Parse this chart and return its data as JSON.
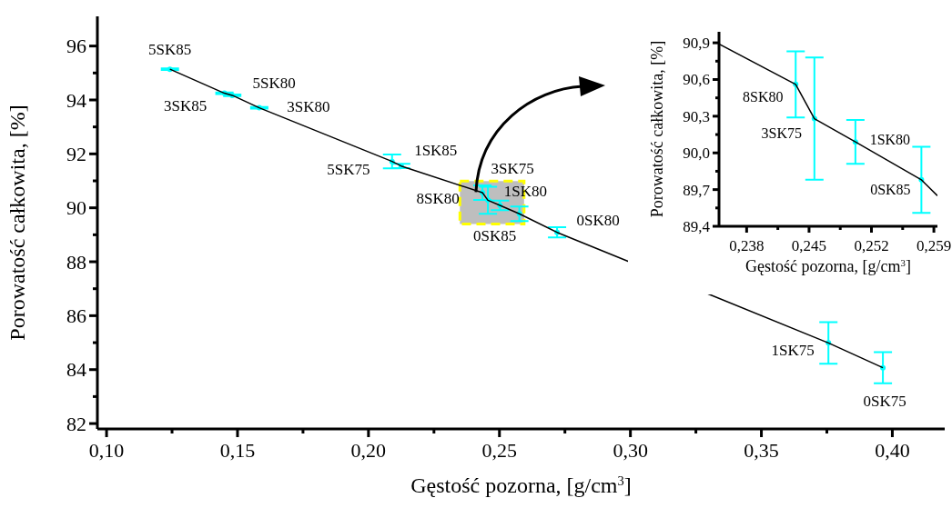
{
  "chart_data": [
    {
      "type": "scatter",
      "xlabel": "Gęstość pozorna, [g/cm$^{3}$]",
      "ylabel": "Porowatość całkowita, [%]",
      "xlim": [
        0.0965,
        0.42
      ],
      "ylim": [
        81.8,
        97.1
      ],
      "xticks": [
        {
          "value": 0.1,
          "label": "0,10"
        },
        {
          "value": 0.125,
          "label": null
        },
        {
          "value": 0.15,
          "label": "0,15"
        },
        {
          "value": 0.175,
          "label": null
        },
        {
          "value": 0.2,
          "label": "0,20"
        },
        {
          "value": 0.225,
          "label": null
        },
        {
          "value": 0.25,
          "label": "0,25"
        },
        {
          "value": 0.275,
          "label": null
        },
        {
          "value": 0.3,
          "label": "0,30"
        },
        {
          "value": 0.325,
          "label": null
        },
        {
          "value": 0.35,
          "label": "0,35"
        },
        {
          "value": 0.375,
          "label": null
        },
        {
          "value": 0.4,
          "label": "0,40"
        }
      ],
      "yticks": [
        82,
        {
          "value": 83,
          "label": null
        },
        84,
        {
          "value": 85,
          "label": null
        },
        86,
        {
          "value": 87,
          "label": null
        },
        88,
        {
          "value": 89,
          "label": null
        },
        90,
        {
          "value": 91,
          "label": null
        },
        92,
        {
          "value": 93,
          "label": null
        },
        94,
        {
          "value": 95,
          "label": null
        },
        96
      ],
      "grid": false,
      "series": [
        {
          "type": "scatter",
          "marker": "circle",
          "color": "#00ffff",
          "x": [
            0.1242,
            0.145,
            0.148,
            0.1583,
            0.209,
            0.2125,
            0.2435,
            0.2456,
            0.2502,
            0.2576,
            0.272,
            0.3756,
            0.3964
          ],
          "values": [
            95.14,
            94.25,
            94.17,
            93.71,
            91.72,
            91.55,
            90.56,
            90.28,
            90.09,
            89.78,
            89.09,
            84.99,
            84.07
          ],
          "errors": [
            0.03,
            0.03,
            0.03,
            0.03,
            0.26,
            0.08,
            0.27,
            0.5,
            0.18,
            0.27,
            0.19,
            0.77,
            0.58
          ]
        },
        {
          "type": "line",
          "marker": "none",
          "color": "#000000",
          "x": [
            0.1242,
            0.145,
            0.148,
            0.1583,
            0.209,
            0.2125,
            0.2435,
            0.2456,
            0.2502,
            0.2576,
            0.272,
            0.3756,
            0.3964
          ],
          "values": [
            95.14,
            94.25,
            94.17,
            93.71,
            91.72,
            91.55,
            90.56,
            90.28,
            90.09,
            89.78,
            89.09,
            84.99,
            84.07
          ]
        }
      ],
      "annotations": [
        {
          "text": "5SK85",
          "x": 0.1242,
          "y": 95.14
        },
        {
          "text": "3SK85",
          "x": 0.145,
          "y": 94.25
        },
        {
          "text": "5SK80",
          "x": 0.148,
          "y": 94.17
        },
        {
          "text": "3SK80",
          "x": 0.1583,
          "y": 93.71
        },
        {
          "text": "1SK85",
          "x": 0.209,
          "y": 91.72
        },
        {
          "text": "5SK75",
          "x": 0.2125,
          "y": 91.55
        },
        {
          "text": "8SK80",
          "x": 0.2435,
          "y": 90.56
        },
        {
          "text": "3SK75",
          "x": 0.2456,
          "y": 90.28
        },
        {
          "text": "1SK80",
          "x": 0.2502,
          "y": 90.09
        },
        {
          "text": "0SK85",
          "x": 0.2576,
          "y": 89.78
        },
        {
          "text": "0SK80",
          "x": 0.272,
          "y": 89.09
        },
        {
          "text": "1SK75",
          "x": 0.3756,
          "y": 84.99
        },
        {
          "text": "0SK75",
          "x": 0.3964,
          "y": 84.07
        }
      ]
    },
    {
      "type": "scatter",
      "xlabel": "Gęstość pozorna, [g/cm$^{3}$]",
      "ylabel": "Porowatość całkowita, [%]",
      "xlim": [
        0.2349,
        0.2594
      ],
      "ylim": [
        89.4,
        90.99
      ],
      "xticks": [
        {
          "value": 0.238,
          "label": "0,238"
        },
        {
          "value": 0.2415,
          "label": null
        },
        {
          "value": 0.245,
          "label": "0,245"
        },
        {
          "value": 0.2485,
          "label": null
        },
        {
          "value": 0.252,
          "label": "0,252"
        },
        {
          "value": 0.2555,
          "label": null
        },
        {
          "value": 0.259,
          "label": "0,259"
        }
      ],
      "yticks": [
        {
          "value": 89.4,
          "label": "89,4"
        },
        {
          "value": 89.55,
          "label": null
        },
        {
          "value": 89.7,
          "label": "89,7"
        },
        {
          "value": 89.85,
          "label": null
        },
        {
          "value": 90.0,
          "label": "90,0"
        },
        {
          "value": 90.15,
          "label": null
        },
        {
          "value": 90.3,
          "label": "90,3"
        },
        {
          "value": 90.45,
          "label": null
        },
        {
          "value": 90.6,
          "label": "90,6"
        },
        {
          "value": 90.75,
          "label": null
        },
        {
          "value": 90.9,
          "label": "90,9"
        }
      ],
      "grid": false,
      "series": [
        {
          "type": "scatter",
          "marker": "circle",
          "color": "#00ffff",
          "x": [
            0.2435,
            0.2456,
            0.2502,
            0.2576
          ],
          "values": [
            90.56,
            90.28,
            90.09,
            89.78
          ],
          "errors": [
            0.27,
            0.5,
            0.18,
            0.27
          ]
        },
        {
          "type": "line",
          "marker": "none",
          "color": "#000000",
          "x": [
            0.2349,
            0.2435,
            0.2456,
            0.2502,
            0.2576,
            0.2594
          ],
          "values": [
            90.89,
            90.56,
            90.28,
            90.09,
            89.78,
            89.65
          ]
        }
      ],
      "annotations": [
        {
          "text": "8SK80",
          "x": 0.2435,
          "y": 90.56
        },
        {
          "text": "3SK75",
          "x": 0.2456,
          "y": 90.28
        },
        {
          "text": "1SK80",
          "x": 0.2502,
          "y": 90.09
        },
        {
          "text": "0SK85",
          "x": 0.2576,
          "y": 89.78
        }
      ]
    }
  ]
}
